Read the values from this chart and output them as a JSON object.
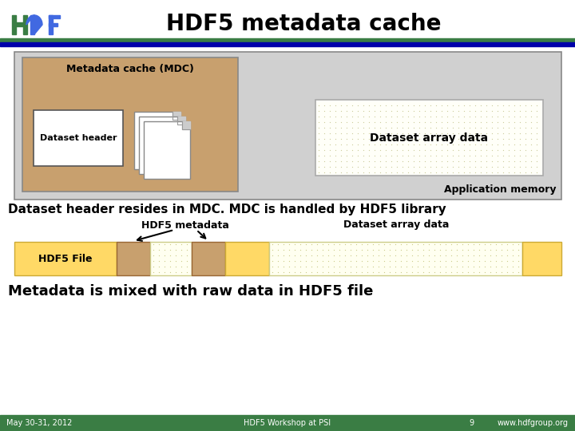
{
  "title": "HDF5 metadata cache",
  "title_fontsize": 20,
  "title_color": "#000000",
  "bg_color": "#ffffff",
  "footer_bar_color": "#3a7d44",
  "footer_text_color": "#ffffff",
  "footer_left": "May 30-31, 2012",
  "footer_center": "HDF5 Workshop at PSI",
  "footer_right": "www.hdfgroup.org",
  "footer_page": "9",
  "app_memory_box_color": "#d0d0d0",
  "app_memory_box_edge": "#888888",
  "mdc_box_color": "#c8a06e",
  "mdc_box_edge": "#888888",
  "mdc_label": "Metadata cache (MDC)",
  "dataset_header_box_color": "#ffffff",
  "dataset_header_box_edge": "#555555",
  "dataset_header_label": "Dataset header",
  "dataset_array_label": "Dataset array data",
  "app_memory_label": "Application memory",
  "desc_text1": "Dataset header resides in MDC. MDC is handled by HDF5 library",
  "desc_text2": "Metadata is mixed with raw data in HDF5 file",
  "hdf5_file_label": "HDF5 File",
  "hdf5_metadata_label": "HDF5 metadata",
  "dataset_array_data_label": "Dataset array data",
  "bar_yellow_color": "#ffd966",
  "bar_tan_color": "#c8a06e",
  "logo_green": "#3a7d44",
  "logo_blue": "#4169e1",
  "header_green": "#3a7d44",
  "header_blue": "#0000aa"
}
